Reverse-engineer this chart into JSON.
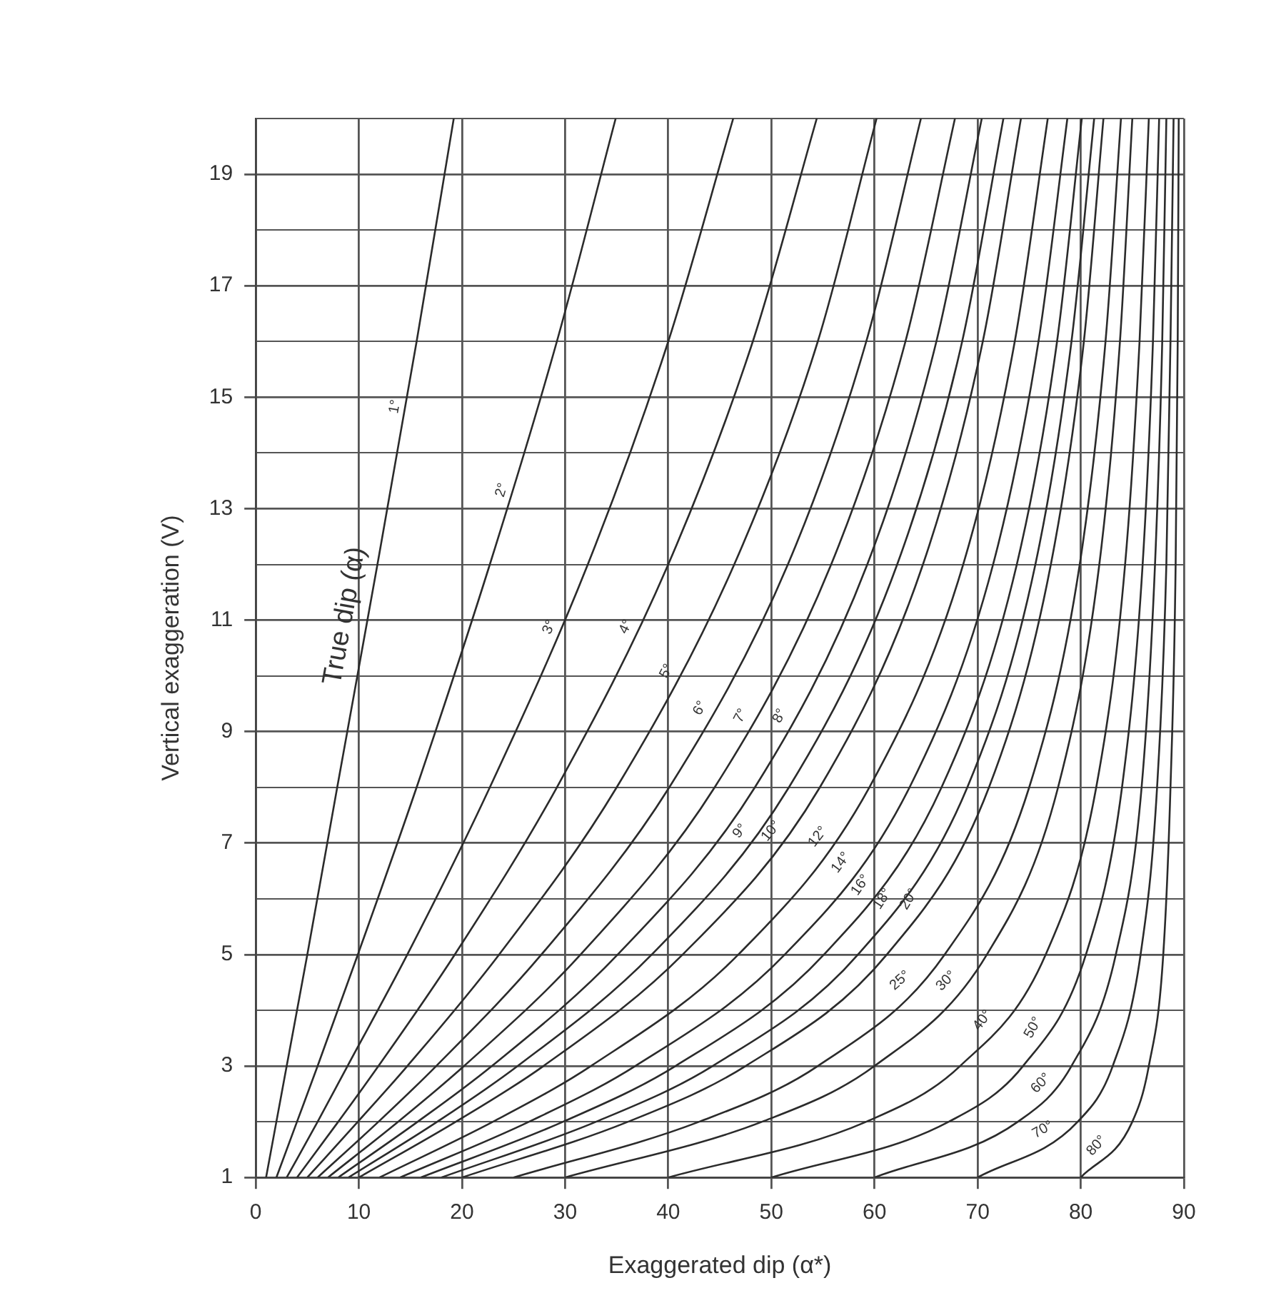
{
  "chart_data": {
    "type": "line",
    "xlabel": "Exaggerated dip (α*)",
    "ylabel": "Vertical exaggeration (V)",
    "annotations": [
      "True dip (α)"
    ],
    "xlim": [
      0,
      90
    ],
    "xticks": [
      0,
      10,
      20,
      30,
      40,
      50,
      60,
      70,
      80,
      90
    ],
    "ylim": [
      1,
      20
    ],
    "yticks": [
      1,
      {
        "value": 2,
        "label": null
      },
      3,
      {
        "value": 4,
        "label": null
      },
      5,
      {
        "value": 6,
        "label": null
      },
      7,
      {
        "value": 8,
        "label": null
      },
      9,
      {
        "value": 10,
        "label": null
      },
      11,
      {
        "value": 12,
        "label": null
      },
      13,
      {
        "value": 14,
        "label": null
      },
      15,
      {
        "value": 16,
        "label": null
      },
      17,
      {
        "value": 18,
        "label": null
      },
      19,
      {
        "value": 20,
        "label": null
      }
    ],
    "grid": true,
    "legend": false,
    "line_style": "solid",
    "series": [
      {
        "name": "1°",
        "color": "#2b2b2b",
        "x": [
          1,
          2,
          3,
          5,
          7.9,
          11.8,
          15.6,
          19.2
        ],
        "values": [
          1,
          2,
          3,
          5,
          8,
          12,
          16,
          20
        ]
      },
      {
        "name": "2°",
        "color": "#2b2b2b",
        "x": [
          2,
          4,
          6,
          9.9,
          15.6,
          22.7,
          29.2,
          34.9
        ],
        "values": [
          1,
          2,
          3,
          5,
          8,
          12,
          16,
          20
        ]
      },
      {
        "name": "3°",
        "color": "#2b2b2b",
        "x": [
          3,
          6,
          8.9,
          14.7,
          22.7,
          32.2,
          40,
          46.3
        ],
        "values": [
          1,
          2,
          3,
          5,
          8,
          12,
          16,
          20
        ]
      },
      {
        "name": "4°",
        "color": "#2b2b2b",
        "x": [
          4,
          8,
          11.9,
          19.3,
          29.2,
          40,
          48.2,
          54.4
        ],
        "values": [
          1,
          2,
          3,
          5,
          8,
          12,
          16,
          20
        ]
      },
      {
        "name": "5°",
        "color": "#2b2b2b",
        "x": [
          5,
          9.9,
          14.7,
          23.6,
          35,
          46.4,
          54.5,
          60.2
        ],
        "values": [
          1,
          2,
          3,
          5,
          8,
          12,
          16,
          20
        ]
      },
      {
        "name": "6°",
        "color": "#2b2b2b",
        "x": [
          6,
          11.9,
          17.5,
          27.7,
          40.1,
          51.6,
          59.2,
          64.5
        ],
        "values": [
          1,
          2,
          3,
          5,
          8,
          12,
          16,
          20
        ]
      },
      {
        "name": "7°",
        "color": "#2b2b2b",
        "x": [
          7,
          13.8,
          20.2,
          31.5,
          44.5,
          55.8,
          63,
          67.8
        ],
        "values": [
          1,
          2,
          3,
          5,
          8,
          12,
          16,
          20
        ]
      },
      {
        "name": "8°",
        "color": "#2b2b2b",
        "x": [
          8,
          15.7,
          22.9,
          35.1,
          48.4,
          59.3,
          66,
          70.4
        ],
        "values": [
          1,
          2,
          3,
          5,
          8,
          12,
          16,
          20
        ]
      },
      {
        "name": "9°",
        "color": "#2b2b2b",
        "x": [
          9,
          17.6,
          25.4,
          38.4,
          51.7,
          62.2,
          68.5,
          72.5
        ],
        "values": [
          1,
          2,
          3,
          5,
          8,
          12,
          16,
          20
        ]
      },
      {
        "name": "10°",
        "color": "#2b2b2b",
        "x": [
          10,
          19.4,
          27.9,
          41.4,
          54.7,
          64.7,
          70.5,
          74.2
        ],
        "values": [
          1,
          2,
          3,
          5,
          8,
          12,
          16,
          20
        ]
      },
      {
        "name": "12°",
        "color": "#2b2b2b",
        "x": [
          12,
          23,
          32.5,
          46.8,
          59.5,
          68.6,
          73.6,
          76.8
        ],
        "values": [
          1,
          2,
          3,
          5,
          8,
          12,
          16,
          20
        ]
      },
      {
        "name": "14°",
        "color": "#2b2b2b",
        "x": [
          14,
          26.5,
          36.8,
          51.3,
          63.4,
          71.5,
          75.9,
          78.7
        ],
        "values": [
          1,
          2,
          3,
          5,
          8,
          12,
          16,
          20
        ]
      },
      {
        "name": "16°",
        "color": "#2b2b2b",
        "x": [
          16,
          29.8,
          40.7,
          55.1,
          66.5,
          73.8,
          77.7,
          80.1
        ],
        "values": [
          1,
          2,
          3,
          5,
          8,
          12,
          16,
          20
        ]
      },
      {
        "name": "18°",
        "color": "#2b2b2b",
        "x": [
          18,
          33,
          44.3,
          58.4,
          69,
          75.6,
          79.1,
          81.3
        ],
        "values": [
          1,
          2,
          3,
          5,
          8,
          12,
          16,
          20
        ]
      },
      {
        "name": "20°",
        "color": "#2b2b2b",
        "x": [
          20,
          36.1,
          47.5,
          61.2,
          71.1,
          77.1,
          80.3,
          82.2
        ],
        "values": [
          1,
          2,
          3,
          5,
          8,
          12,
          16,
          20
        ]
      },
      {
        "name": "25°",
        "color": "#2b2b2b",
        "x": [
          25,
          43,
          54.5,
          66.8,
          75,
          79.9,
          82.4,
          83.9
        ],
        "values": [
          1,
          2,
          3,
          5,
          8,
          12,
          16,
          20
        ]
      },
      {
        "name": "30°",
        "color": "#2b2b2b",
        "x": [
          30,
          49.1,
          60,
          70.9,
          77.8,
          81.8,
          83.8,
          85
        ],
        "values": [
          1,
          2,
          3,
          5,
          8,
          12,
          16,
          20
        ]
      },
      {
        "name": "40°",
        "color": "#2b2b2b",
        "x": [
          40,
          59.2,
          68.3,
          76.6,
          81.5,
          84.3,
          85.7,
          86.6
        ],
        "values": [
          1,
          2,
          3,
          5,
          8,
          12,
          16,
          20
        ]
      },
      {
        "name": "50°",
        "color": "#2b2b2b",
        "x": [
          50,
          67.2,
          74.4,
          80.5,
          84,
          86,
          87,
          87.6
        ],
        "values": [
          1,
          2,
          3,
          5,
          8,
          12,
          16,
          20
        ]
      },
      {
        "name": "60°",
        "color": "#2b2b2b",
        "x": [
          60,
          73.9,
          79.1,
          83.4,
          85.9,
          87.2,
          87.9,
          88.3
        ],
        "values": [
          1,
          2,
          3,
          5,
          8,
          12,
          16,
          20
        ]
      },
      {
        "name": "70°",
        "color": "#2b2b2b",
        "x": [
          70,
          79.7,
          83.1,
          85.8,
          87.4,
          88.3,
          88.7,
          89
        ],
        "values": [
          1,
          2,
          3,
          5,
          8,
          12,
          16,
          20
        ]
      },
      {
        "name": "80°",
        "color": "#2b2b2b",
        "x": [
          80,
          85,
          86.6,
          88,
          88.7,
          89.2,
          89.4,
          89.5
        ],
        "values": [
          1,
          2,
          3,
          5,
          8,
          12,
          16,
          20
        ]
      }
    ]
  }
}
